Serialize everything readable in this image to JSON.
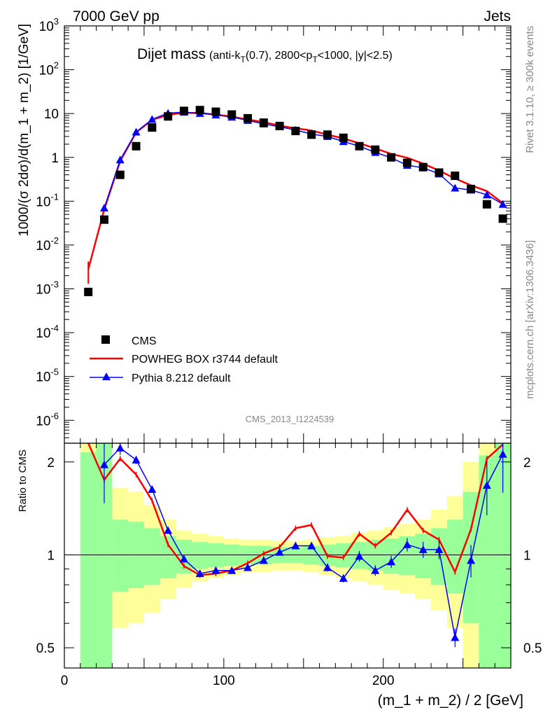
{
  "header": {
    "left": "7000 GeV pp",
    "right": "Jets"
  },
  "side_labels": {
    "rivet": "Rivet 3.1.10, ≥ 300k events",
    "mcplots": "mcplots.cern.ch [arXiv:1306.3436]"
  },
  "plot_title": {
    "main": "Dijet mass",
    "details": "(anti-k",
    "sub_T1": "T",
    "details2": "(0.7), 2800<p",
    "sub_T2": "T",
    "details3": "<1000, |y|<2.5)"
  },
  "watermark": "CMS_2013_I1224539",
  "axes": {
    "ylabel_top": "1000/(σ 2dσ)/d(m_1 + m_2) [1/GeV]",
    "ylabel_ratio": "Ratio to CMS",
    "xlabel": "(m_1 + m_2) / 2 [GeV]"
  },
  "colors": {
    "cms": "#000000",
    "powheg": "#ff0000",
    "pythia": "#0000ff",
    "band_inner": "#99ff99",
    "band_outer": "#ffff99"
  },
  "chart_data": [
    {
      "type": "scatter",
      "panel": "main",
      "xlim": [
        0,
        280
      ],
      "ylim": [
        3e-07,
        1000
      ],
      "yscale": "log",
      "x_ticks": [
        0,
        100,
        200
      ],
      "y_tick_labels": [
        "10^-6",
        "10^-5",
        "10^-4",
        "10^-3",
        "10^-2",
        "10^-1",
        "1",
        "10",
        "10^2",
        "10^3"
      ],
      "legend_position": "lower-left",
      "x": [
        15,
        25,
        35,
        45,
        55,
        65,
        75,
        85,
        95,
        105,
        115,
        125,
        135,
        145,
        155,
        165,
        175,
        185,
        195,
        205,
        215,
        225,
        235,
        245,
        255,
        265,
        275
      ],
      "series": [
        {
          "name": "CMS",
          "marker": "square",
          "values": [
            0.00085,
            0.038,
            0.4,
            1.8,
            4.8,
            8.6,
            11.5,
            12.0,
            11.0,
            9.5,
            7.8,
            6.2,
            5.2,
            4.0,
            3.3,
            3.3,
            2.8,
            1.8,
            1.5,
            1.0,
            0.75,
            0.6,
            0.45,
            0.38,
            0.19,
            0.085,
            0.04
          ]
        },
        {
          "name": "POWHEG BOX r3744 default",
          "marker": "line",
          "values": [
            0.0028,
            0.065,
            0.82,
            3.7,
            7.2,
            9.3,
            10.4,
            10.3,
            9.5,
            8.5,
            7.3,
            6.4,
            5.3,
            4.6,
            4.1,
            3.3,
            2.7,
            2.1,
            1.6,
            1.2,
            0.98,
            0.72,
            0.5,
            0.33,
            0.23,
            0.17,
            0.09
          ]
        },
        {
          "name": "Pythia 8.212 default",
          "marker": "triangle",
          "values": [
            null,
            0.07,
            0.88,
            3.8,
            7.4,
            10.2,
            10.8,
            10.1,
            9.3,
            8.3,
            7.0,
            5.8,
            5.0,
            4.2,
            3.4,
            3.0,
            2.3,
            1.8,
            1.3,
            0.98,
            0.66,
            0.58,
            0.42,
            0.2,
            0.18,
            0.14,
            0.085
          ]
        }
      ]
    },
    {
      "type": "line",
      "panel": "ratio",
      "xlim": [
        0,
        280
      ],
      "ylim": [
        0.43,
        2.3
      ],
      "yscale": "log",
      "y_ticks": [
        0.5,
        1,
        2
      ],
      "reference_line": 1,
      "x": [
        15,
        25,
        35,
        45,
        55,
        65,
        75,
        85,
        95,
        105,
        115,
        125,
        135,
        145,
        155,
        165,
        175,
        185,
        195,
        205,
        215,
        225,
        235,
        245,
        255,
        265,
        275
      ],
      "band_x_edges": [
        10,
        20,
        30,
        40,
        50,
        60,
        70,
        80,
        90,
        100,
        110,
        120,
        130,
        140,
        150,
        160,
        170,
        180,
        190,
        200,
        210,
        220,
        230,
        240,
        250,
        260,
        270,
        280
      ],
      "band_inner": [
        [
          0.43,
          2.15
        ],
        [
          0.43,
          2.3
        ],
        [
          0.76,
          1.3
        ],
        [
          0.78,
          1.28
        ],
        [
          0.8,
          1.22
        ],
        [
          0.84,
          1.15
        ],
        [
          0.87,
          1.12
        ],
        [
          0.9,
          1.1
        ],
        [
          0.91,
          1.09
        ],
        [
          0.92,
          1.08
        ],
        [
          0.93,
          1.07
        ],
        [
          0.93,
          1.07
        ],
        [
          0.94,
          1.06
        ],
        [
          0.94,
          1.06
        ],
        [
          0.93,
          1.07
        ],
        [
          0.92,
          1.08
        ],
        [
          0.91,
          1.09
        ],
        [
          0.9,
          1.1
        ],
        [
          0.89,
          1.12
        ],
        [
          0.87,
          1.13
        ],
        [
          0.86,
          1.15
        ],
        [
          0.84,
          1.17
        ],
        [
          0.8,
          1.22
        ],
        [
          0.75,
          1.3
        ],
        [
          0.6,
          1.6
        ],
        [
          0.43,
          2.1
        ],
        [
          0.43,
          2.3
        ]
      ],
      "band_outer": [
        [
          0.43,
          2.3
        ],
        [
          0.43,
          2.3
        ],
        [
          0.58,
          1.65
        ],
        [
          0.6,
          1.6
        ],
        [
          0.65,
          1.45
        ],
        [
          0.72,
          1.3
        ],
        [
          0.78,
          1.2
        ],
        [
          0.82,
          1.17
        ],
        [
          0.84,
          1.15
        ],
        [
          0.86,
          1.13
        ],
        [
          0.88,
          1.12
        ],
        [
          0.88,
          1.12
        ],
        [
          0.89,
          1.11
        ],
        [
          0.89,
          1.11
        ],
        [
          0.88,
          1.12
        ],
        [
          0.86,
          1.14
        ],
        [
          0.84,
          1.15
        ],
        [
          0.82,
          1.18
        ],
        [
          0.8,
          1.2
        ],
        [
          0.77,
          1.23
        ],
        [
          0.75,
          1.26
        ],
        [
          0.72,
          1.3
        ],
        [
          0.66,
          1.4
        ],
        [
          0.58,
          1.55
        ],
        [
          0.43,
          2.0
        ],
        [
          0.43,
          2.3
        ],
        [
          0.43,
          2.3
        ]
      ],
      "series": [
        {
          "name": "POWHEG BOX r3744 default",
          "values": [
            3.3,
            1.75,
            2.05,
            1.82,
            1.5,
            1.08,
            0.92,
            0.86,
            0.87,
            0.89,
            0.94,
            1.01,
            1.06,
            1.22,
            1.25,
            0.99,
            0.98,
            1.17,
            1.07,
            1.18,
            1.4,
            1.2,
            1.12,
            0.88,
            1.21,
            2.05,
            2.28
          ]
        },
        {
          "name": "Pythia 8.212 default",
          "values": [
            null,
            1.96,
            2.22,
            2.03,
            1.63,
            1.2,
            0.97,
            0.87,
            0.89,
            0.89,
            0.91,
            0.96,
            1.02,
            1.07,
            1.07,
            0.91,
            0.84,
            0.99,
            0.89,
            0.95,
            1.08,
            1.04,
            1.04,
            0.54,
            0.96,
            1.68,
            2.12
          ]
        }
      ]
    }
  ]
}
